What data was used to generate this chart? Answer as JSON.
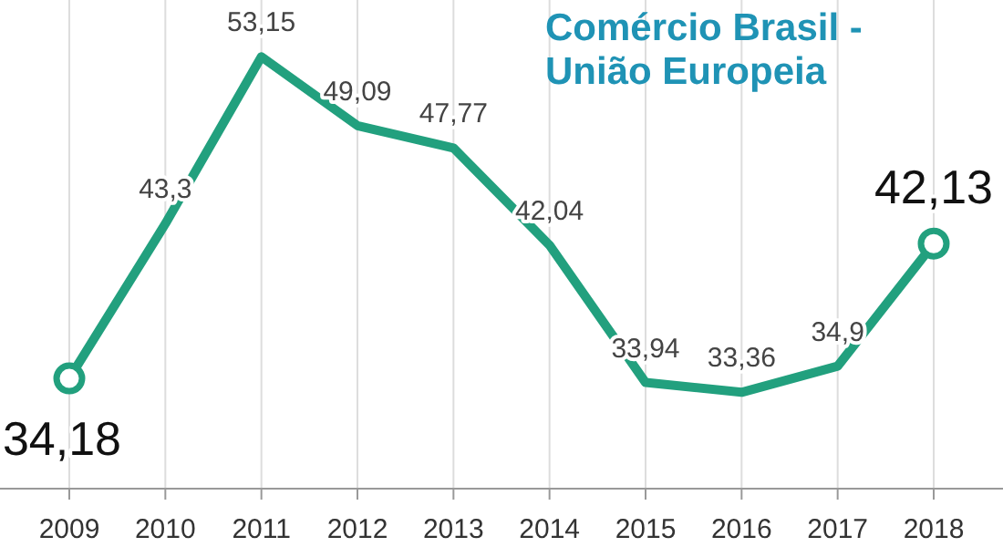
{
  "chart_data": {
    "type": "line",
    "title": "Comércio Brasil - União Europeia",
    "categories": [
      "2009",
      "2010",
      "2011",
      "2012",
      "2013",
      "2014",
      "2015",
      "2016",
      "2017",
      "2018"
    ],
    "series": [
      {
        "color": "#22a07e",
        "values": [
          34.18,
          43.3,
          53.15,
          49.09,
          47.77,
          42.04,
          33.94,
          33.36,
          34.9,
          42.13
        ],
        "value_labels": [
          "34,18",
          "43,3",
          "53,15",
          "49,09",
          "47,77",
          "42,04",
          "33,94",
          "33,36",
          "34,9",
          "42,13"
        ]
      },
      {
        "type": "scatter",
        "color": "#22a07e",
        "values": [
          34.18,
          null,
          null,
          null,
          null,
          null,
          null,
          null,
          null,
          42.13
        ],
        "marker": "circle"
      }
    ],
    "ylim": [
      28,
      56.5
    ],
    "grid": "x"
  }
}
